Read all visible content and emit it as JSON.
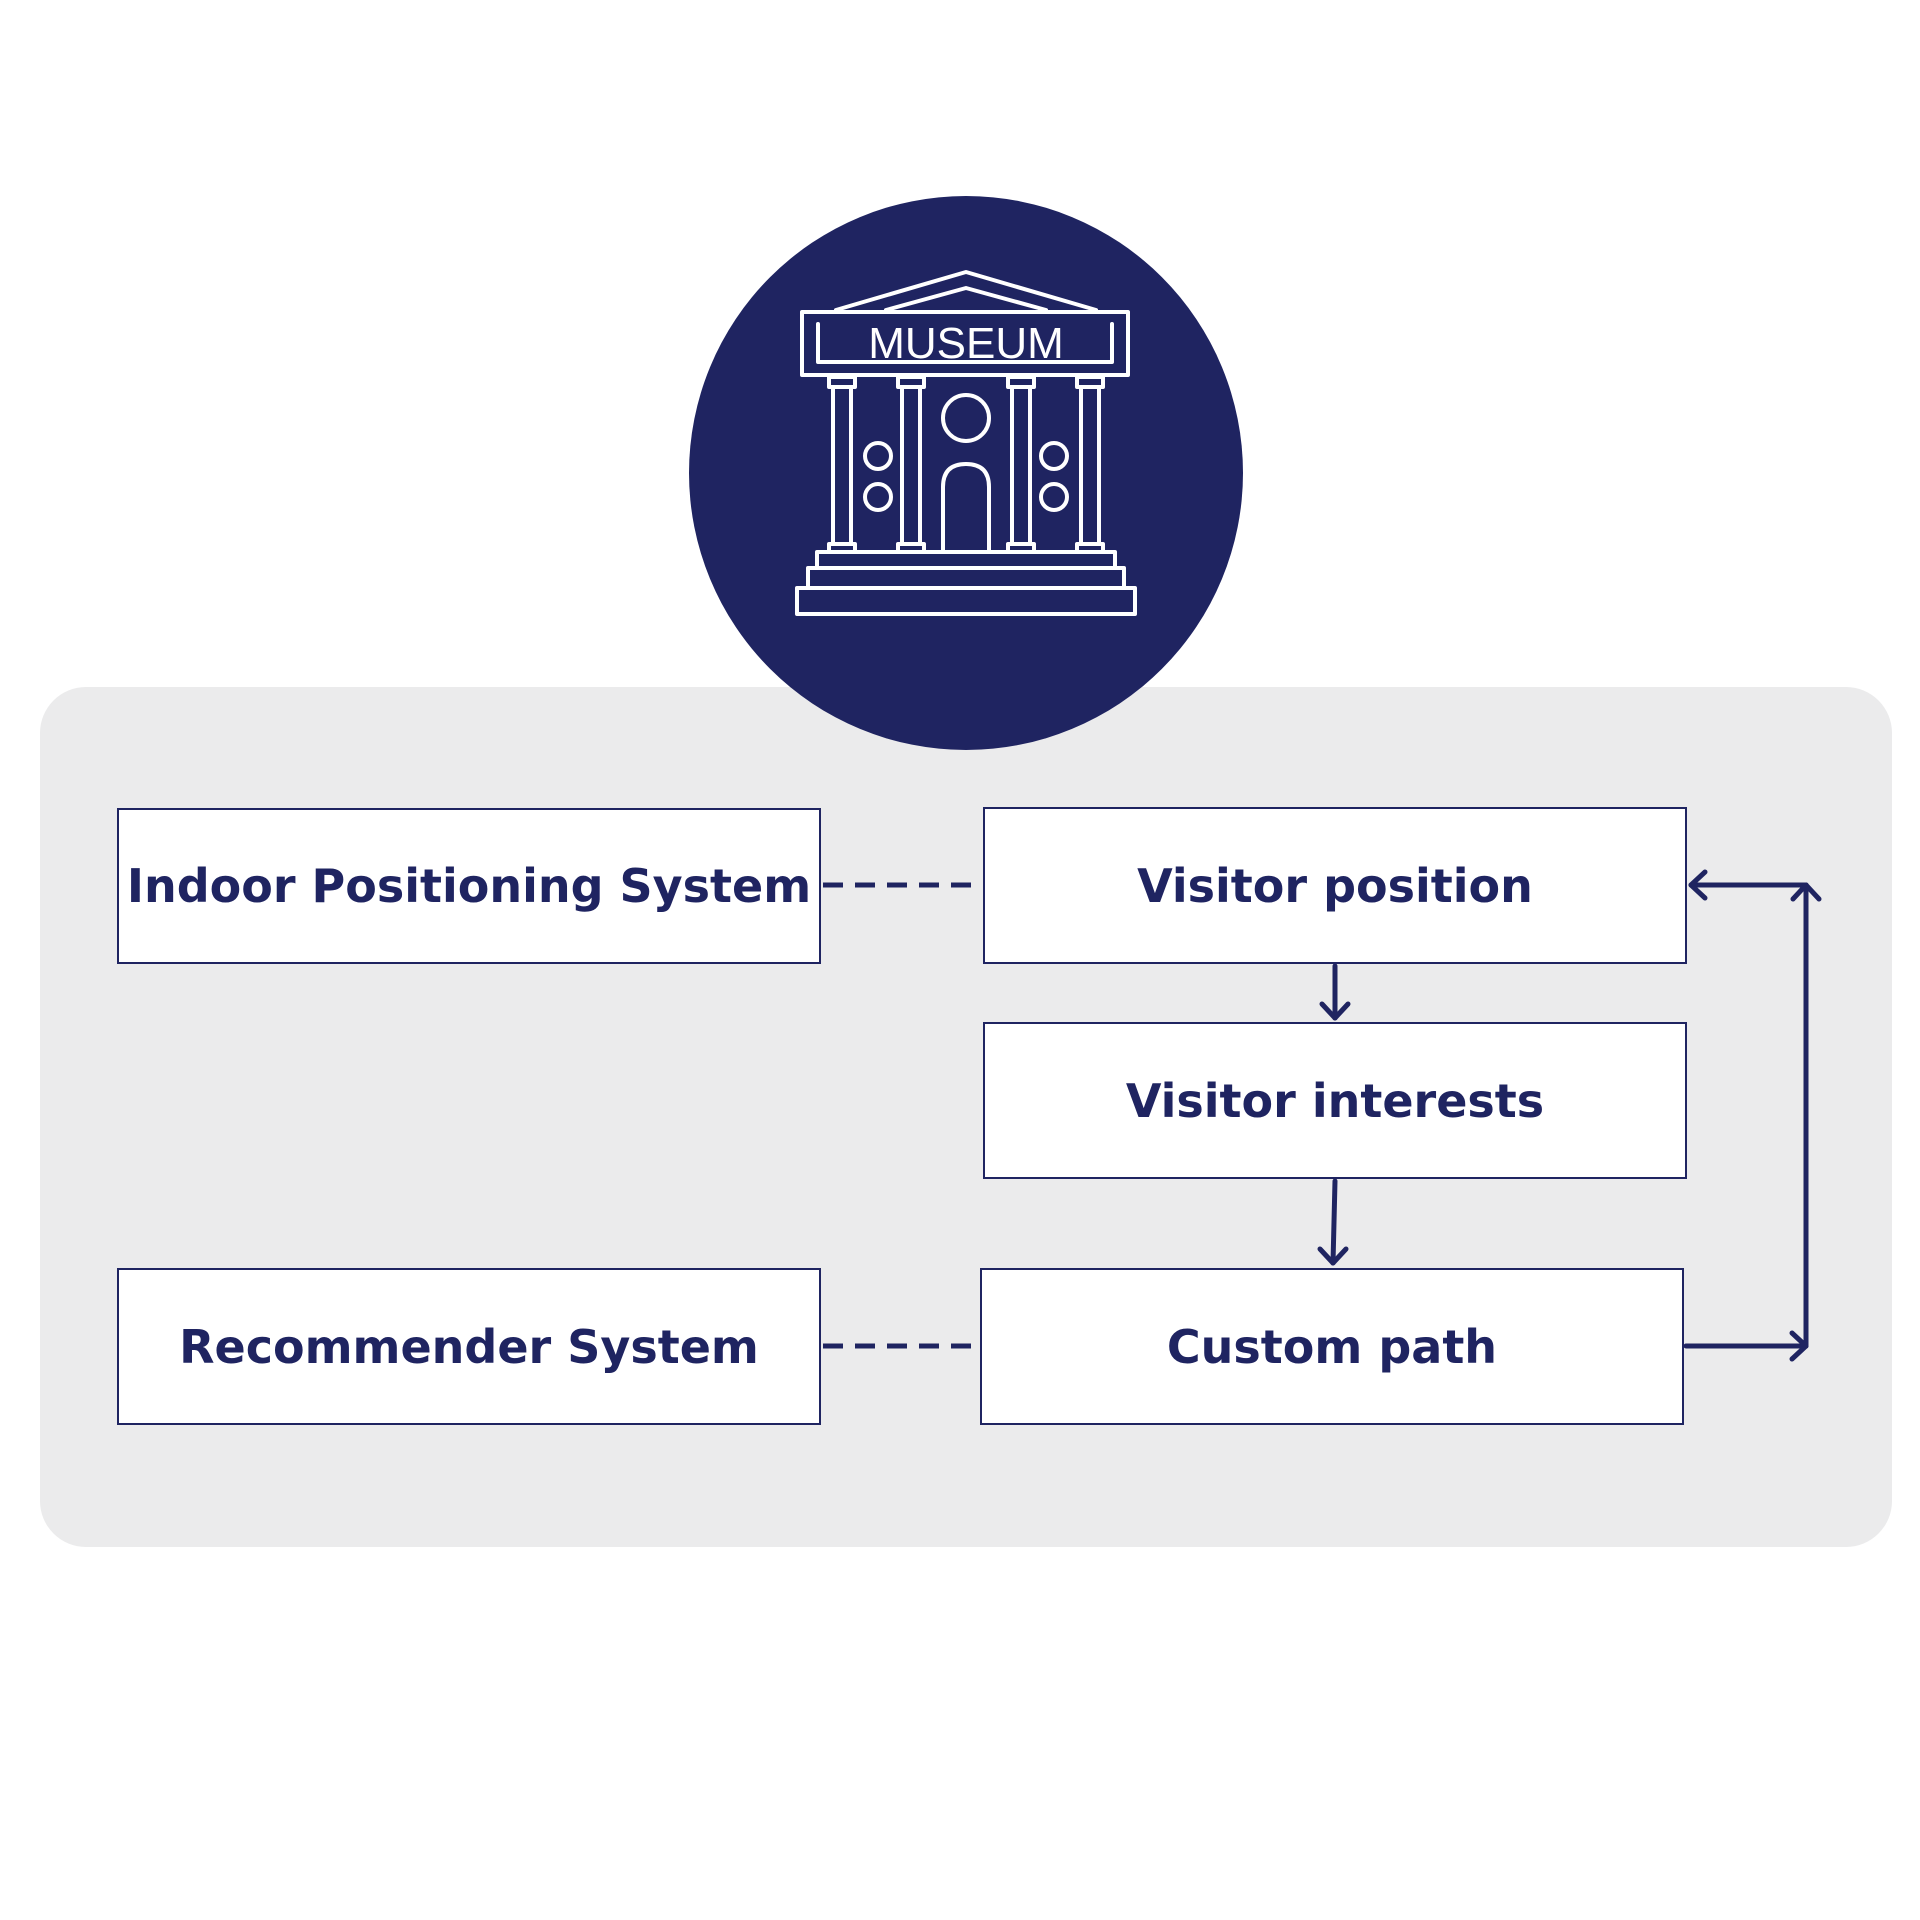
{
  "museum_icon": {
    "icon": "museum-building-icon",
    "sign_text": "MUSEUM"
  },
  "nodes": {
    "indoor_positioning": "Indoor Positioning System",
    "visitor_position": "Visitor position",
    "visitor_interests": "Visitor interests",
    "recommender_system": "Recommender System",
    "custom_path": "Custom path"
  },
  "colors": {
    "primary": "#1f2461",
    "panel": "#ebebec",
    "box_fill": "#ffffff"
  }
}
